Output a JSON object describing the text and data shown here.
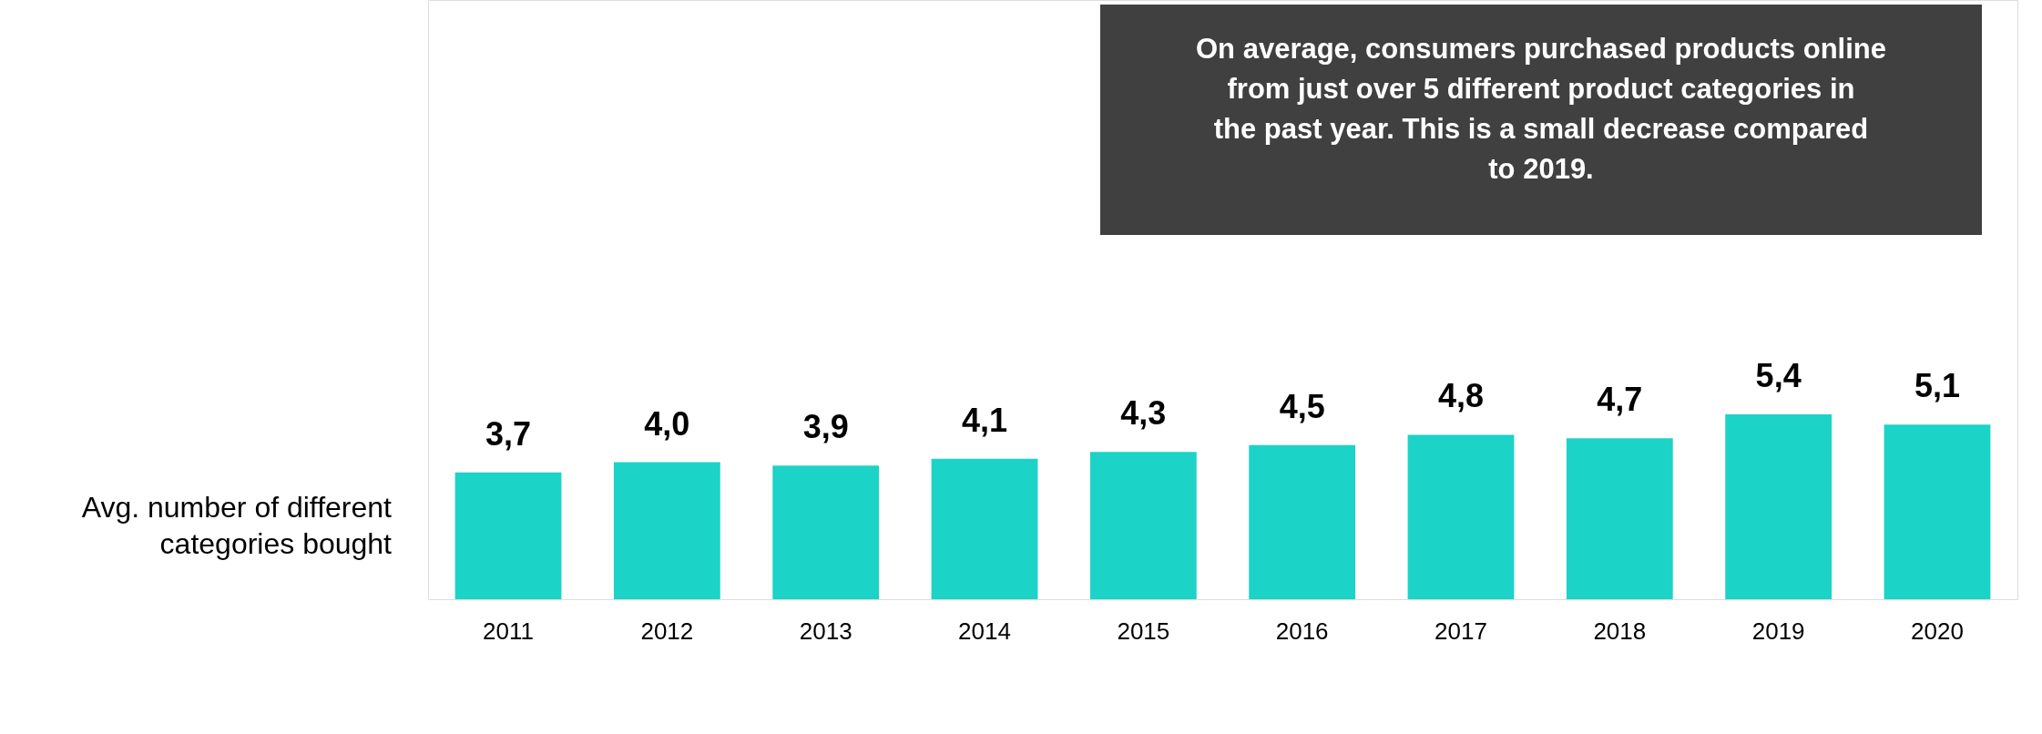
{
  "chart_data": {
    "type": "bar",
    "ylabel": "Avg. number of different categories bought",
    "categories": [
      "2011",
      "2012",
      "2013",
      "2014",
      "2015",
      "2016",
      "2017",
      "2018",
      "2019",
      "2020"
    ],
    "values": [
      3.7,
      4.0,
      3.9,
      4.1,
      4.3,
      4.5,
      4.8,
      4.7,
      5.4,
      5.1
    ],
    "value_labels": [
      "3,7",
      "4,0",
      "3,9",
      "4,1",
      "4,3",
      "4,5",
      "4,8",
      "4,7",
      "5,4",
      "5,1"
    ],
    "annotations": [
      "On average, consumers purchased products online from just over 5 different product categories in the past year. This is a small decrease compared to 2019."
    ],
    "color": "#1cd3c8"
  }
}
